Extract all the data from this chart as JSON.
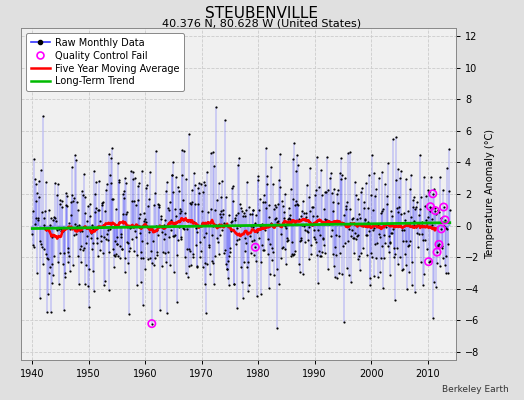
{
  "title": "STEUBENVILLE",
  "subtitle": "40.376 N, 80.628 W (United States)",
  "ylabel": "Temperature Anomaly (°C)",
  "credit": "Berkeley Earth",
  "xlim": [
    1938,
    2015
  ],
  "ylim": [
    -8.5,
    12.5
  ],
  "yticks": [
    -8,
    -6,
    -4,
    -2,
    0,
    2,
    4,
    6,
    8,
    10,
    12
  ],
  "xticks": [
    1940,
    1950,
    1960,
    1970,
    1980,
    1990,
    2000,
    2010
  ],
  "bg_color": "#e0e0e0",
  "plot_bg_color": "#f0f0f0",
  "raw_line_color": "#3333ff",
  "raw_marker_color": "#000000",
  "ma_color": "#ff0000",
  "trend_color": "#00bb00",
  "qc_color": "#ff00ff",
  "title_fontsize": 11,
  "subtitle_fontsize": 8,
  "tick_fontsize": 7,
  "legend_fontsize": 7,
  "ylabel_fontsize": 7
}
